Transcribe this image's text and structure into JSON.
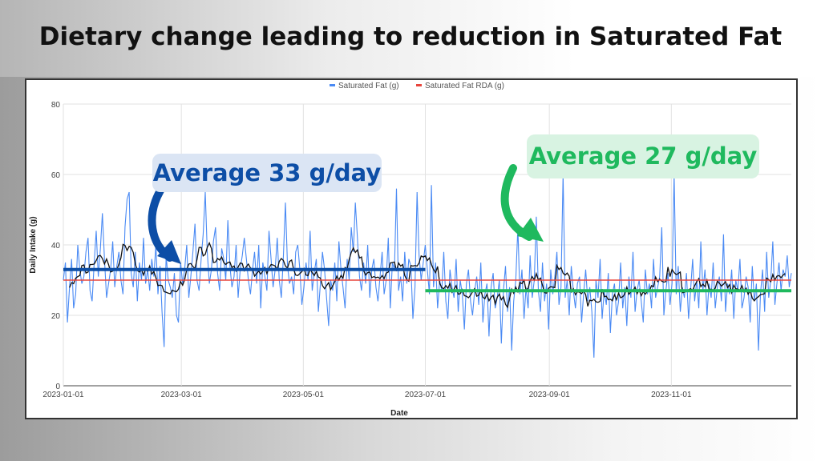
{
  "title": "Dietary change leading to reduction in Saturated Fat",
  "annotations": [
    {
      "text": "Average 33 g/day",
      "value": 33,
      "from": "2023-01-01",
      "to": "2023-07-01",
      "color": "#0d4ea6"
    },
    {
      "text": "Average 27 g/day",
      "value": 27,
      "from": "2023-07-01",
      "to": "2023-12-31",
      "color": "#1fb95e"
    }
  ],
  "chart_data": {
    "type": "line",
    "title": "",
    "xlabel": "Date",
    "ylabel": "Daily Intake (g)",
    "ylim": [
      0,
      80
    ],
    "yticks": [
      0,
      20,
      40,
      60,
      80
    ],
    "xrange": [
      "2023-01-01",
      "2023-12-31"
    ],
    "xticks": [
      "2023-01-01",
      "2023-03-01",
      "2023-05-01",
      "2023-07-01",
      "2023-09-01",
      "2023-11-01"
    ],
    "grid": true,
    "legend_position": "top",
    "series": [
      {
        "name": "Saturated Fat (g)",
        "color": "#4a8af4",
        "values": [
          30,
          35,
          18,
          28,
          36,
          22,
          26,
          40,
          33,
          29,
          31,
          38,
          42,
          27,
          24,
          35,
          44,
          31,
          39,
          49,
          36,
          25,
          29,
          33,
          41,
          28,
          34,
          38,
          30,
          26,
          45,
          53,
          55,
          32,
          28,
          38,
          24,
          35,
          30,
          42,
          29,
          33,
          27,
          36,
          31,
          40,
          26,
          34,
          21,
          11,
          37,
          30,
          28,
          25,
          32,
          20,
          18,
          35,
          29,
          33,
          40,
          25,
          31,
          38,
          46,
          30,
          27,
          36,
          43,
          55,
          38,
          29,
          33,
          41,
          45,
          32,
          27,
          39,
          36,
          30,
          47,
          34,
          28,
          31,
          40,
          25,
          33,
          37,
          42,
          36,
          30,
          26,
          33,
          38,
          29,
          40,
          22,
          35,
          31,
          27,
          44,
          36,
          28,
          33,
          42,
          30,
          25,
          37,
          52,
          34,
          29,
          31,
          26,
          38,
          40,
          33,
          23,
          28,
          35,
          30,
          44,
          27,
          32,
          36,
          21,
          29,
          38,
          33,
          25,
          17,
          30,
          27,
          35,
          24,
          41,
          33,
          28,
          22,
          36,
          30,
          45,
          38,
          52,
          42,
          31,
          27,
          35,
          29,
          40,
          25,
          33,
          36,
          28,
          24,
          31,
          38,
          26,
          30,
          42,
          22,
          35,
          33,
          56,
          27,
          31,
          24,
          38,
          29,
          36,
          34,
          19,
          28,
          55,
          37,
          30,
          35,
          40,
          33,
          26,
          57,
          28,
          35,
          22,
          30,
          27,
          38,
          24,
          19,
          33,
          28,
          25,
          36,
          21,
          30,
          26,
          16,
          29,
          33,
          24,
          20,
          27,
          31,
          23,
          35,
          18,
          26,
          29,
          14,
          28,
          32,
          22,
          25,
          30,
          12,
          27,
          34,
          21,
          28,
          10,
          24,
          30,
          45,
          26,
          33,
          19,
          28,
          22,
          37,
          25,
          30,
          48,
          27,
          21,
          35,
          24,
          29,
          16,
          33,
          26,
          31,
          38,
          23,
          28,
          60,
          25,
          30,
          20,
          34,
          27,
          22,
          29,
          31,
          18,
          26,
          33,
          24,
          28,
          21,
          8,
          30,
          25,
          36,
          19,
          27,
          23,
          32,
          15,
          26,
          29,
          20,
          24,
          35,
          22,
          28,
          17,
          31,
          25,
          38,
          21,
          27,
          30,
          24,
          18,
          33,
          26,
          29,
          22,
          36,
          25,
          28,
          31,
          45,
          20,
          27,
          32,
          23,
          29,
          60,
          26,
          34,
          21,
          28,
          25,
          32,
          19,
          27,
          36,
          24,
          30,
          22,
          41,
          27,
          33,
          20,
          29,
          25,
          35,
          22,
          28,
          31,
          24,
          43,
          21,
          29,
          26,
          33,
          19,
          30,
          27,
          36,
          22,
          25,
          31,
          28,
          18,
          34,
          24,
          29,
          10,
          26,
          33,
          21,
          38,
          25,
          30,
          41,
          23,
          29,
          35,
          27,
          33,
          31,
          37,
          28,
          32
        ]
      },
      {
        "name": "Saturated Fat RDA (g)",
        "color": "#e8453c",
        "constant": 30
      }
    ],
    "moving_average_window": 7,
    "moving_average_color": "#111111"
  }
}
